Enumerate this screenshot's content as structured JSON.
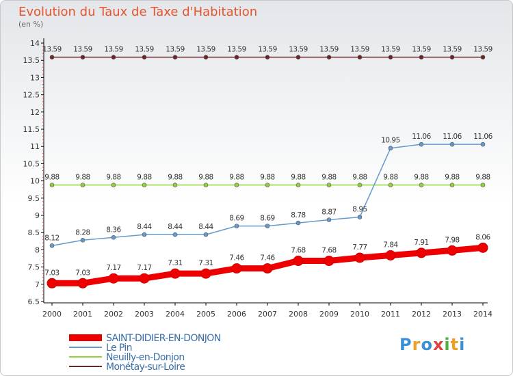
{
  "chart_data": {
    "type": "line",
    "title": "Evolution du Taux de Taxe d'Habitation",
    "unit_label": "(en %)",
    "x": [
      "2000",
      "2001",
      "2002",
      "2003",
      "2004",
      "2005",
      "2006",
      "2007",
      "2008",
      "2009",
      "2010",
      "2011",
      "2012",
      "2013",
      "2014"
    ],
    "ylim": [
      6.5,
      14
    ],
    "yticks": [
      "6.5",
      "7",
      "7.5",
      "8",
      "8.5",
      "9",
      "9.5",
      "10",
      "10.5",
      "11",
      "11.5",
      "12",
      "12.5",
      "13",
      "13.5",
      "14"
    ],
    "grid": false,
    "legend_position": "bottom-left",
    "series": [
      {
        "name": "Monétay-sur-Loire",
        "color": "#6b2626",
        "values": [
          13.59,
          13.59,
          13.59,
          13.59,
          13.59,
          13.59,
          13.59,
          13.59,
          13.59,
          13.59,
          13.59,
          13.59,
          13.59,
          13.59,
          13.59
        ],
        "labels": [
          "13.59",
          "13.59",
          "13.59",
          "13.59",
          "13.59",
          "13.59",
          "13.59",
          "13.59",
          "13.59",
          "13.59",
          "13.59",
          "13.59",
          "13.59",
          "13.59",
          "13.59"
        ]
      },
      {
        "name": "Neuilly-en-Donjon",
        "color": "#90d040",
        "values": [
          9.88,
          9.88,
          9.88,
          9.88,
          9.88,
          9.88,
          9.88,
          9.88,
          9.88,
          9.88,
          9.88,
          9.88,
          9.88,
          9.88,
          9.88
        ],
        "labels": [
          "9.88",
          "9.88",
          "9.88",
          "9.88",
          "9.88",
          "9.88",
          "9.88",
          "9.88",
          "9.88",
          "9.88",
          "9.88",
          "9.88",
          "9.88",
          "9.88",
          "9.88"
        ]
      },
      {
        "name": "Le Pin",
        "color": "#6699cc",
        "values": [
          8.12,
          8.28,
          8.36,
          8.44,
          8.44,
          8.44,
          8.69,
          8.69,
          8.78,
          8.87,
          8.95,
          10.95,
          11.06,
          11.06,
          11.06
        ],
        "labels": [
          "8.12",
          "8.28",
          "8.36",
          "8.44",
          "8.44",
          "8.44",
          "8.69",
          "8.69",
          "8.78",
          "8.87",
          "8.95",
          "10.95",
          "11.06",
          "11.06",
          "11.06"
        ]
      },
      {
        "name": "SAINT-DIDIER-EN-DONJON",
        "color": "#ee0000",
        "values": [
          7.03,
          7.03,
          7.17,
          7.17,
          7.31,
          7.31,
          7.46,
          7.46,
          7.68,
          7.68,
          7.77,
          7.84,
          7.91,
          7.98,
          8.06
        ],
        "labels": [
          "7.03",
          "7.03",
          "7.17",
          "7.17",
          "7.31",
          "7.31",
          "7.46",
          "7.46",
          "7.68",
          "7.68",
          "7.77",
          "7.84",
          "7.91",
          "7.98",
          "8.06"
        ]
      }
    ],
    "legend_order": [
      "SAINT-DIDIER-EN-DONJON",
      "Le Pin",
      "Neuilly-en-Donjon",
      "Monétay-sur-Loire"
    ]
  },
  "logo": {
    "letters": [
      "P",
      "r",
      "o",
      "x",
      "i",
      "t",
      "i"
    ],
    "colors": [
      "#3a8fd6",
      "#f0a020",
      "#3a8fd6",
      "#e04040",
      "#50b040",
      "#f0a020",
      "#3a8fd6"
    ]
  }
}
